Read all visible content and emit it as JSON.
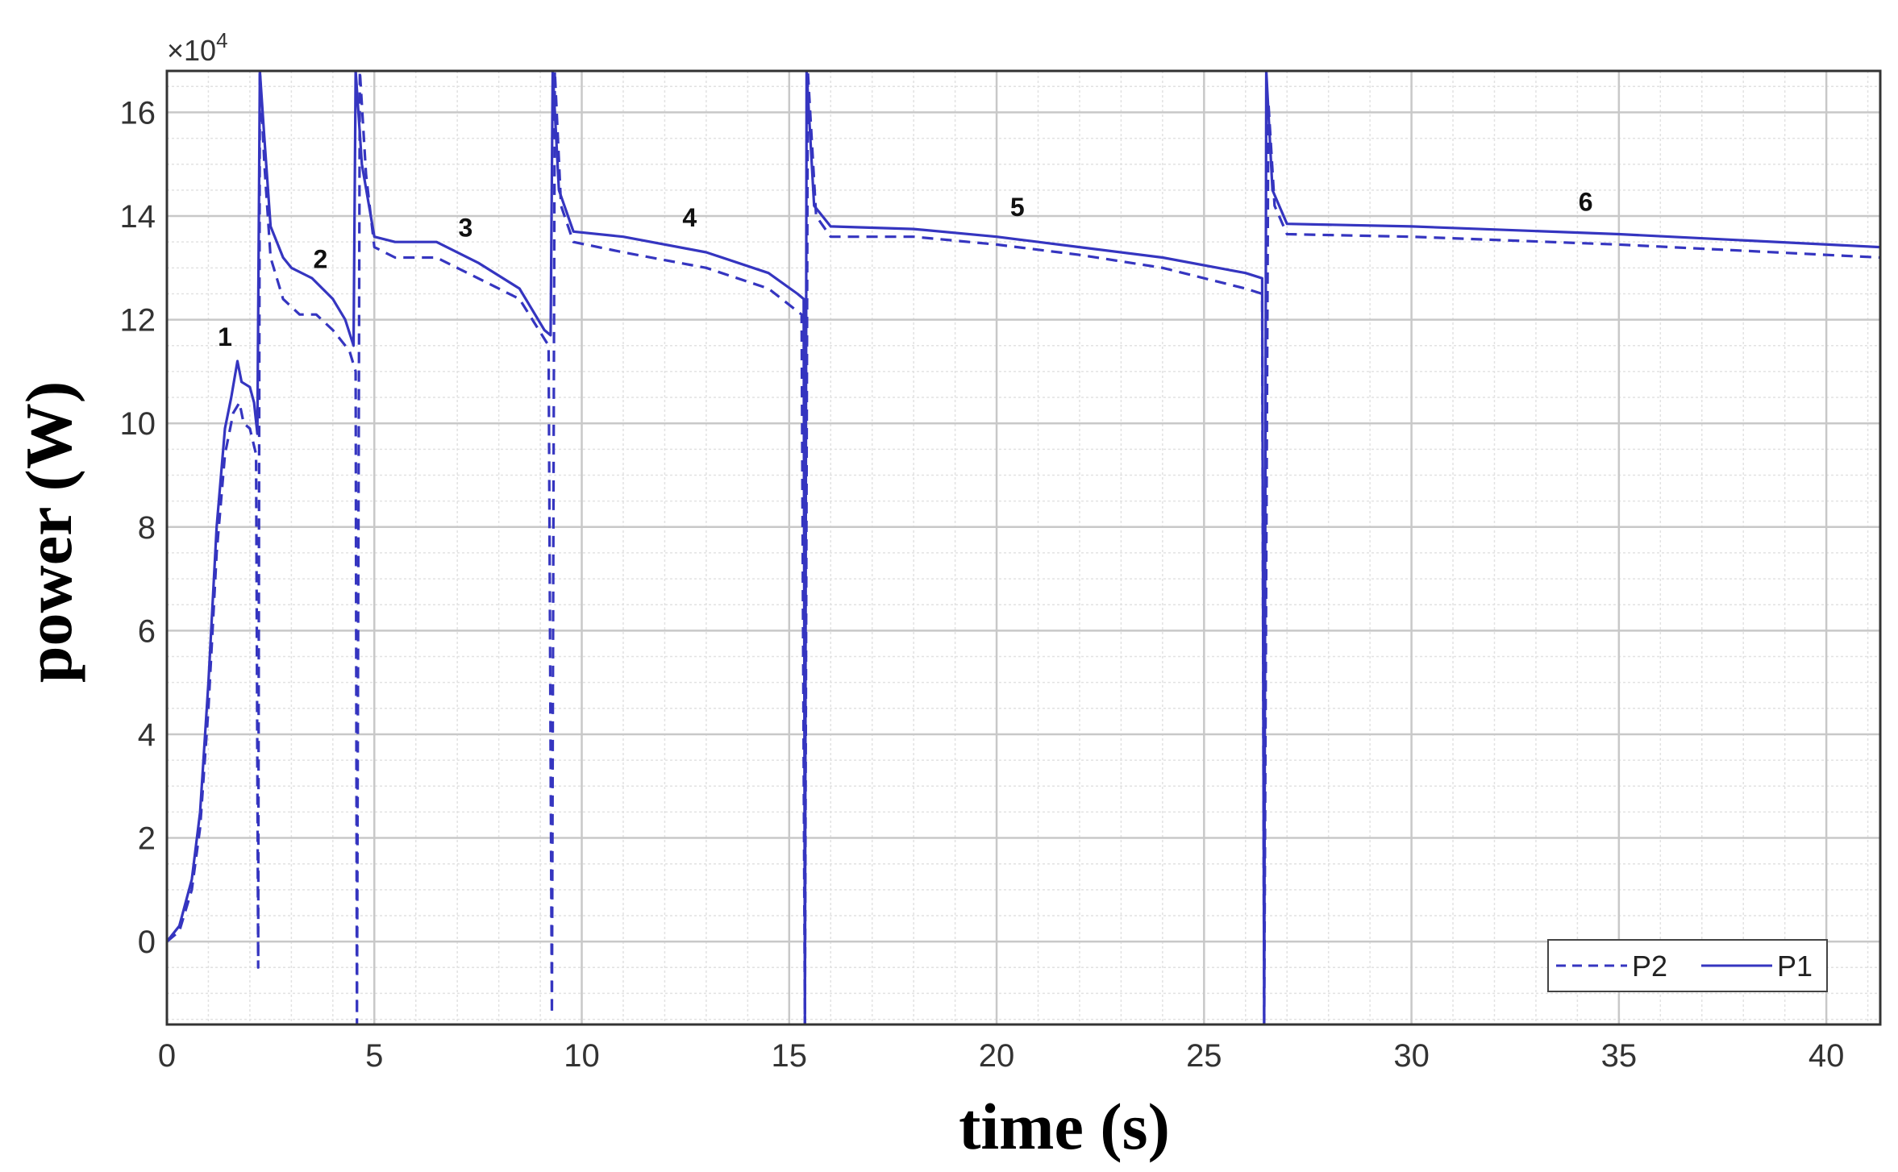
{
  "chart_data": {
    "type": "line",
    "xlabel": "time (s)",
    "ylabel": "power (W)",
    "y_multiplier_label": "×10",
    "y_multiplier_exp": "4",
    "xlim": [
      0,
      41.3
    ],
    "ylim": [
      -1.6,
      16.8
    ],
    "x_ticks": [
      0,
      5,
      10,
      15,
      20,
      25,
      30,
      35,
      40
    ],
    "y_ticks": [
      0,
      2,
      4,
      6,
      8,
      10,
      12,
      14,
      16
    ],
    "grid": true,
    "minor_grid": true,
    "legend_position": "bottom-right",
    "colors": {
      "line": "#3535c0",
      "major_grid": "#c8c8c8",
      "minor_grid": "#e2e2e2",
      "frame": "#333333"
    },
    "segment_labels": [
      {
        "text": "1",
        "x": 1.4,
        "y": 11.5
      },
      {
        "text": "2",
        "x": 3.7,
        "y": 13.0
      },
      {
        "text": "3",
        "x": 7.2,
        "y": 13.6
      },
      {
        "text": "4",
        "x": 12.6,
        "y": 13.8
      },
      {
        "text": "5",
        "x": 20.5,
        "y": 14.0
      },
      {
        "text": "6",
        "x": 34.2,
        "y": 14.1
      }
    ],
    "series": [
      {
        "name": "P2",
        "style": "dashed",
        "points": [
          [
            0,
            0
          ],
          [
            0.3,
            0.2
          ],
          [
            0.6,
            1.0
          ],
          [
            0.8,
            2.2
          ],
          [
            1.0,
            4.5
          ],
          [
            1.2,
            7.5
          ],
          [
            1.4,
            9.4
          ],
          [
            1.6,
            10.2
          ],
          [
            1.75,
            10.4
          ],
          [
            1.85,
            10.0
          ],
          [
            2.0,
            9.9
          ],
          [
            2.15,
            9.4
          ],
          [
            2.2,
            -0.5
          ],
          [
            2.24,
            16.8
          ],
          [
            2.35,
            15.0
          ],
          [
            2.5,
            13.2
          ],
          [
            2.8,
            12.4
          ],
          [
            3.2,
            12.1
          ],
          [
            3.6,
            12.1
          ],
          [
            4.0,
            11.8
          ],
          [
            4.4,
            11.4
          ],
          [
            4.55,
            11.0
          ],
          [
            4.58,
            -1.6
          ],
          [
            4.65,
            16.8
          ],
          [
            4.8,
            14.8
          ],
          [
            5.0,
            13.4
          ],
          [
            5.5,
            13.2
          ],
          [
            6.5,
            13.2
          ],
          [
            7.5,
            12.8
          ],
          [
            8.5,
            12.4
          ],
          [
            9.2,
            11.5
          ],
          [
            9.28,
            -1.4
          ],
          [
            9.35,
            16.8
          ],
          [
            9.5,
            14.2
          ],
          [
            9.8,
            13.5
          ],
          [
            11.0,
            13.3
          ],
          [
            13.0,
            13.0
          ],
          [
            14.5,
            12.6
          ],
          [
            15.3,
            12.1
          ],
          [
            15.38,
            -1.6
          ],
          [
            15.45,
            16.8
          ],
          [
            15.65,
            14.0
          ],
          [
            16.0,
            13.6
          ],
          [
            18.0,
            13.6
          ],
          [
            20.0,
            13.45
          ],
          [
            22.0,
            13.25
          ],
          [
            24.0,
            13.0
          ],
          [
            26.0,
            12.6
          ],
          [
            26.4,
            12.5
          ],
          [
            26.45,
            -1.6
          ],
          [
            26.55,
            16.2
          ],
          [
            26.7,
            14.2
          ],
          [
            27.0,
            13.65
          ],
          [
            30.0,
            13.6
          ],
          [
            35.0,
            13.45
          ],
          [
            41.3,
            13.2
          ]
        ]
      },
      {
        "name": "P1",
        "style": "solid",
        "points": [
          [
            0,
            0
          ],
          [
            0.3,
            0.3
          ],
          [
            0.6,
            1.2
          ],
          [
            0.8,
            2.5
          ],
          [
            1.0,
            5.0
          ],
          [
            1.2,
            8.0
          ],
          [
            1.4,
            9.9
          ],
          [
            1.55,
            10.5
          ],
          [
            1.7,
            11.2
          ],
          [
            1.8,
            10.8
          ],
          [
            2.0,
            10.7
          ],
          [
            2.1,
            10.4
          ],
          [
            2.18,
            9.8
          ],
          [
            2.24,
            16.8
          ],
          [
            2.35,
            15.5
          ],
          [
            2.5,
            13.8
          ],
          [
            2.8,
            13.2
          ],
          [
            3.0,
            13.0
          ],
          [
            3.5,
            12.8
          ],
          [
            4.0,
            12.4
          ],
          [
            4.3,
            12.0
          ],
          [
            4.5,
            11.5
          ],
          [
            4.55,
            16.8
          ],
          [
            4.7,
            15.0
          ],
          [
            5.0,
            13.6
          ],
          [
            5.5,
            13.5
          ],
          [
            6.5,
            13.5
          ],
          [
            7.5,
            13.1
          ],
          [
            8.5,
            12.6
          ],
          [
            9.1,
            11.8
          ],
          [
            9.25,
            11.7
          ],
          [
            9.3,
            16.8
          ],
          [
            9.45,
            14.5
          ],
          [
            9.8,
            13.7
          ],
          [
            11.0,
            13.6
          ],
          [
            13.0,
            13.3
          ],
          [
            14.5,
            12.9
          ],
          [
            15.2,
            12.5
          ],
          [
            15.35,
            12.4
          ],
          [
            15.38,
            -1.6
          ],
          [
            15.42,
            16.8
          ],
          [
            15.6,
            14.2
          ],
          [
            16.0,
            13.8
          ],
          [
            18.0,
            13.75
          ],
          [
            20.0,
            13.6
          ],
          [
            22.0,
            13.4
          ],
          [
            24.0,
            13.2
          ],
          [
            26.0,
            12.9
          ],
          [
            26.4,
            12.8
          ],
          [
            26.45,
            -1.6
          ],
          [
            26.5,
            16.8
          ],
          [
            26.65,
            14.5
          ],
          [
            27.0,
            13.85
          ],
          [
            30.0,
            13.8
          ],
          [
            35.0,
            13.65
          ],
          [
            41.3,
            13.4
          ]
        ]
      }
    ]
  }
}
